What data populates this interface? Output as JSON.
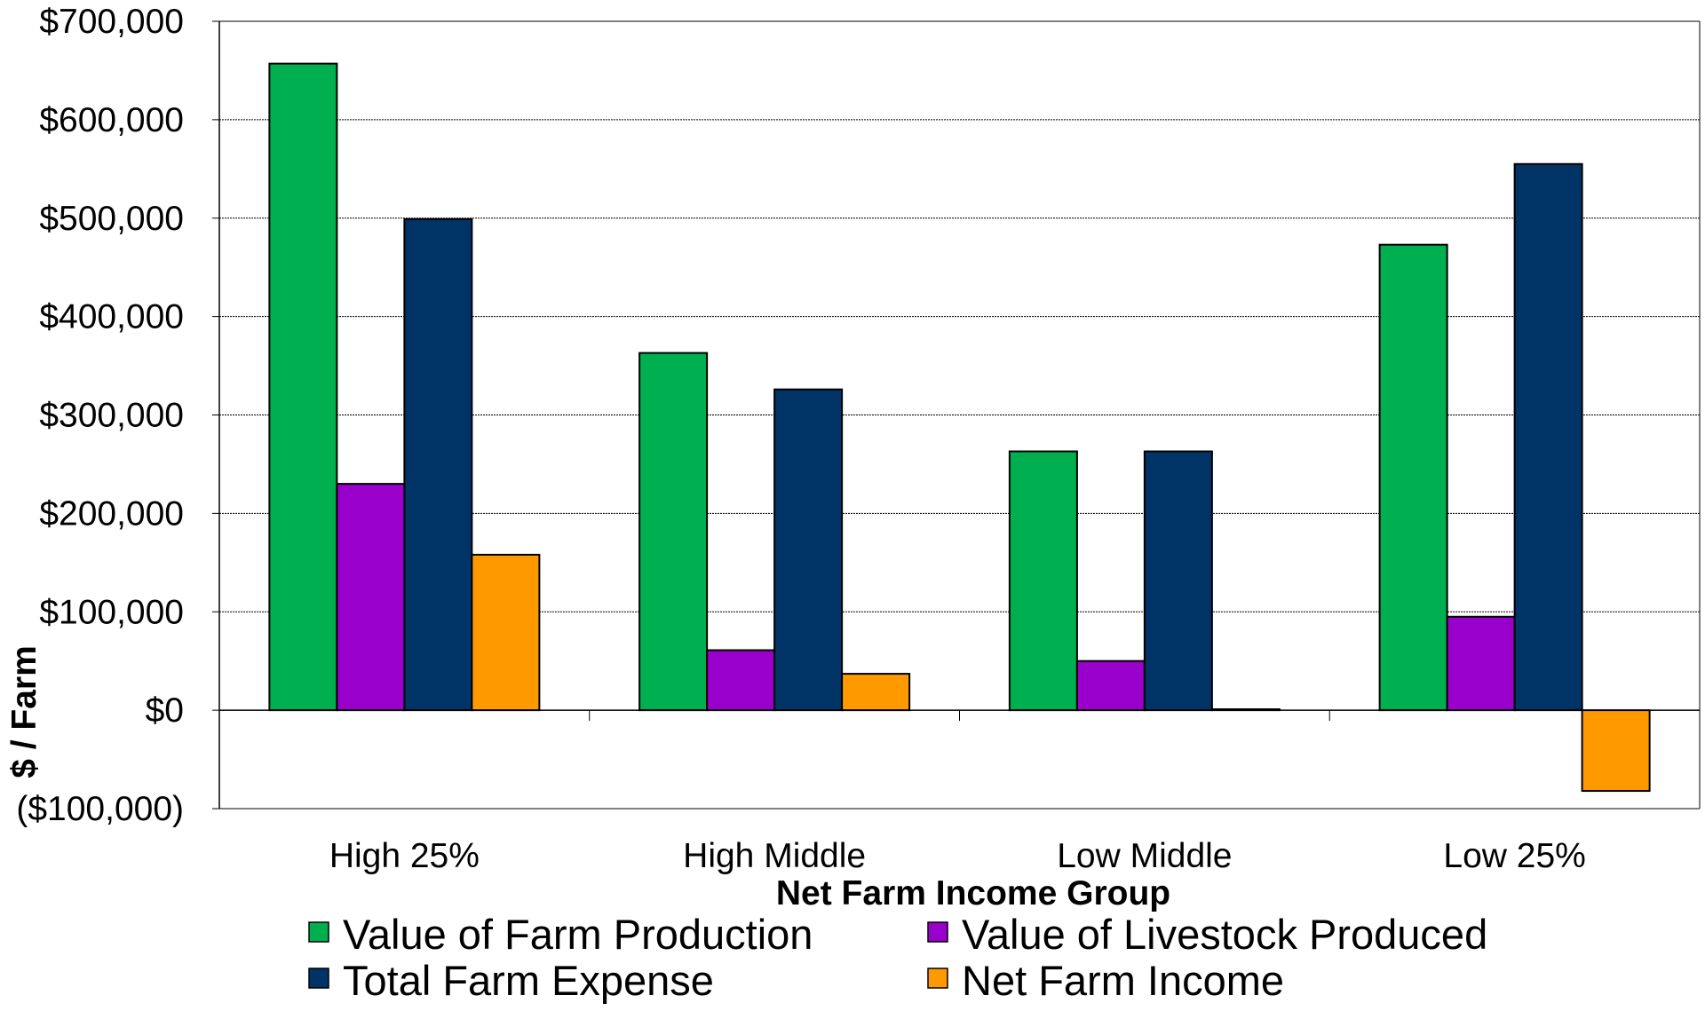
{
  "chart_data": {
    "type": "bar",
    "title": "",
    "xlabel": "Net Farm Income Group",
    "ylabel": "$ / Farm",
    "categories": [
      "High 25%",
      "High Middle",
      "Low Middle",
      "Low 25%"
    ],
    "series": [
      {
        "name": "Value of Farm Production",
        "color": "#00b050",
        "values": [
          657000,
          363000,
          263000,
          473000
        ]
      },
      {
        "name": "Value of Livestock Produced",
        "color": "#9900cc",
        "values": [
          230000,
          61000,
          50000,
          95000
        ]
      },
      {
        "name": "Total Farm Expense",
        "color": "#003366",
        "values": [
          499000,
          326000,
          263000,
          555000
        ]
      },
      {
        "name": "Net Farm Income",
        "color": "#ff9900",
        "values": [
          158000,
          37000,
          1000,
          -82000
        ]
      }
    ],
    "ylim": [
      -100000,
      700000
    ],
    "yticks": [
      -100000,
      0,
      100000,
      200000,
      300000,
      400000,
      500000,
      600000,
      700000
    ],
    "ytick_labels": [
      "($100,000)",
      "$0",
      "$100,000",
      "$200,000",
      "$300,000",
      "$400,000",
      "$500,000",
      "$600,000",
      "$700,000"
    ],
    "grid": true,
    "legend_position": "bottom"
  }
}
